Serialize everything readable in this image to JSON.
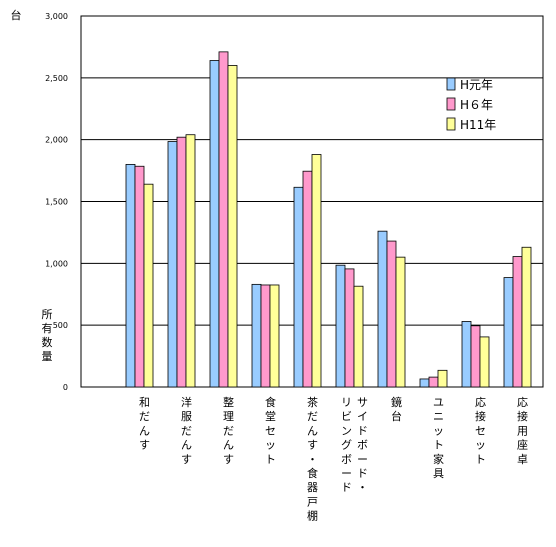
{
  "chart_data": {
    "type": "bar",
    "y_unit": "台",
    "ylabel": [
      "所",
      "有",
      "数",
      "量"
    ],
    "ylim": [
      0,
      3000
    ],
    "yticks": [
      "0",
      "500",
      "1,000",
      "1,500",
      "2,000",
      "2,500",
      "3,000"
    ],
    "grid": true,
    "legend_position": "right",
    "categories": [
      [
        "和",
        "だ",
        "ん",
        "す"
      ],
      [
        "洋",
        "服",
        "だ",
        "ん",
        "す"
      ],
      [
        "整",
        "理",
        "だ",
        "ん",
        "す"
      ],
      [
        "食",
        "堂",
        "セ",
        "ッ",
        "ト"
      ],
      [
        "茶",
        "だ",
        "ん",
        "す",
        "・",
        "食",
        "器",
        "戸",
        "棚"
      ],
      [
        "サ",
        "イ",
        "ド",
        "ボ",
        "ー",
        "ド",
        "・",
        "リ",
        "ビ",
        "ン",
        "グ",
        "ボ",
        "ー",
        "ド"
      ],
      [
        "鏡",
        "台"
      ],
      [
        "ユ",
        "ニ",
        "ッ",
        "ト",
        "家",
        "具"
      ],
      [
        "応",
        "接",
        "セ",
        "ッ",
        "ト"
      ],
      [
        "応",
        "接",
        "用",
        "座",
        "卓"
      ]
    ],
    "series": [
      {
        "name": "H元年",
        "color": "#99ccff",
        "values": [
          1800,
          1985,
          2640,
          830,
          1615,
          985,
          1260,
          65,
          530,
          885
        ]
      },
      {
        "name": "H６年",
        "color": "#ff99cc",
        "values": [
          1785,
          2020,
          2710,
          825,
          1745,
          955,
          1180,
          80,
          495,
          1055
        ]
      },
      {
        "name": "H11年",
        "color": "#ffff99",
        "values": [
          1640,
          2040,
          2600,
          825,
          1880,
          815,
          1050,
          135,
          405,
          1130
        ]
      }
    ]
  }
}
